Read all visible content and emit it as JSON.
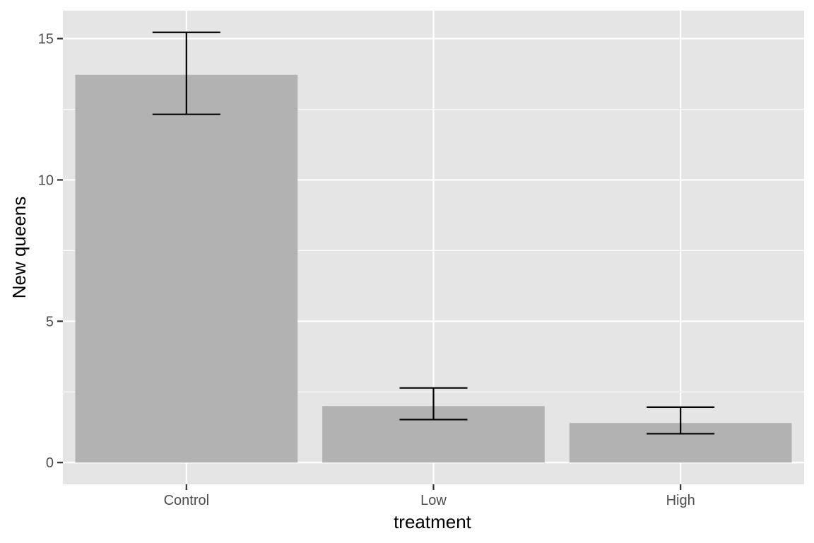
{
  "chart_data": {
    "type": "bar",
    "categories": [
      "Control",
      "Low",
      "High"
    ],
    "values": [
      13.72,
      2.0,
      1.4
    ],
    "error_bars": {
      "upper": [
        15.22,
        2.64,
        1.96
      ],
      "lower": [
        12.32,
        1.52,
        1.02
      ]
    },
    "title": "",
    "xlabel": "treatment",
    "ylabel": "New queens",
    "ylim": [
      -0.77,
      15.99
    ],
    "yticks": [
      0,
      5,
      10,
      15
    ],
    "grid": true,
    "legend": "none",
    "colors": {
      "panel": "#e5e5e5",
      "grid": "#ffffff",
      "bar": "#b2b2b2",
      "errorbar": "#000000",
      "tick": "#333333"
    }
  }
}
